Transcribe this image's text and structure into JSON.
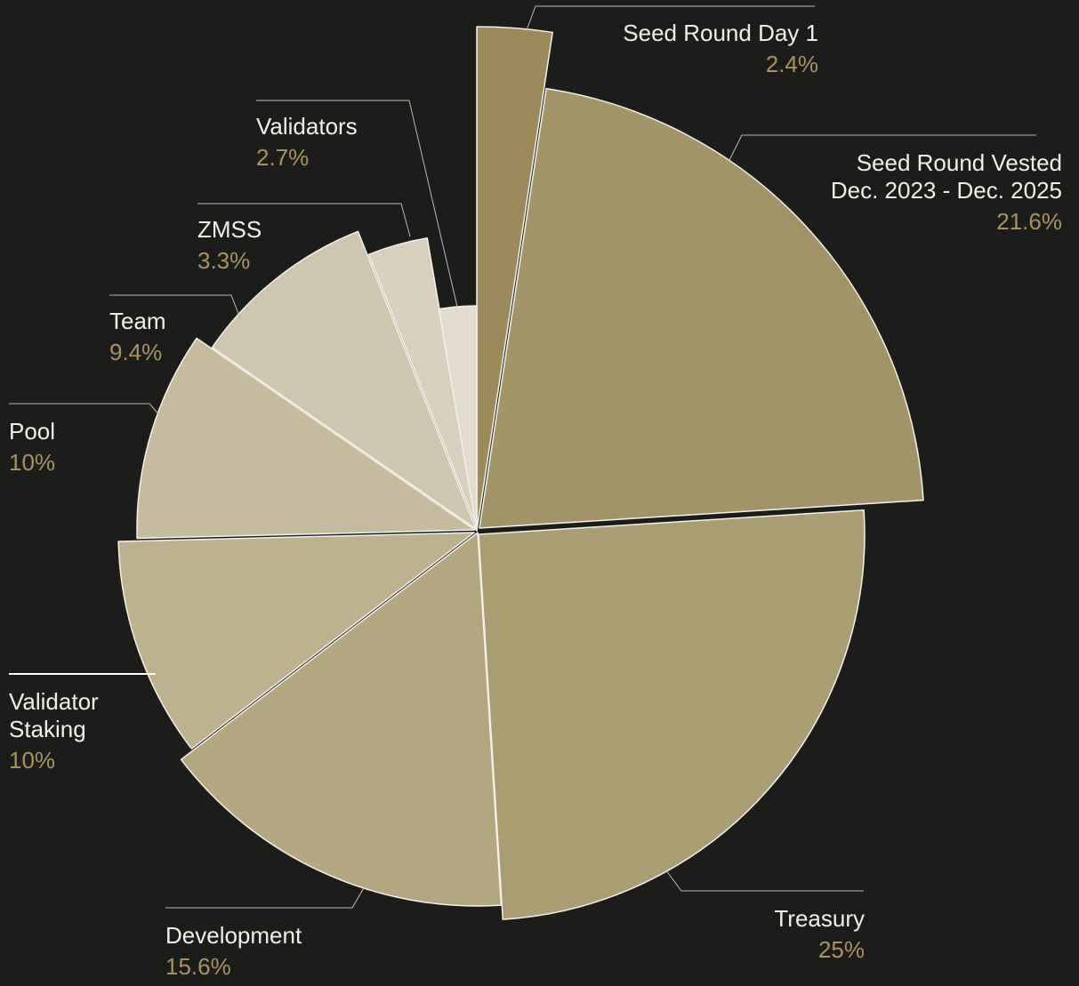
{
  "chart_data": {
    "type": "pie",
    "variant": "polar-area (variable radius slices)",
    "total_percent": 100,
    "slices": [
      {
        "name": "Seed Round Day 1",
        "value": 2.4,
        "label": "2.4%",
        "color": "#9c8a5a"
      },
      {
        "name": "Seed Round Vested Dec. 2023 - Dec. 2025",
        "name_lines": [
          "Seed Round Vested",
          "Dec. 2023 - Dec. 2025"
        ],
        "value": 21.6,
        "label": "21.6%",
        "color": "#a39467"
      },
      {
        "name": "Treasury",
        "value": 25,
        "label": "25%",
        "color": "#ab9d72"
      },
      {
        "name": "Development",
        "value": 15.6,
        "label": "15.6%",
        "color": "#b4a77f"
      },
      {
        "name": "Validator Staking",
        "name_lines": [
          "Validator",
          "Staking"
        ],
        "value": 10,
        "label": "10%",
        "color": "#beb18d"
      },
      {
        "name": "Pool",
        "value": 10,
        "label": "10%",
        "color": "#c6bb9c"
      },
      {
        "name": "Team",
        "value": 9.4,
        "label": "9.4%",
        "color": "#cec5ae"
      },
      {
        "name": "ZMSS",
        "value": 3.3,
        "label": "3.3%",
        "color": "#d8d0bd"
      },
      {
        "name": "Validators",
        "value": 2.7,
        "label": "2.7%",
        "color": "#e3ddcf"
      }
    ],
    "legend": "none (labels placed around chart with leader lines)"
  },
  "colors": {
    "background": "#1c1d1b",
    "label_text": "#f1efe9",
    "value_text": "#a8925f",
    "leader_line": "#bdbab1"
  }
}
